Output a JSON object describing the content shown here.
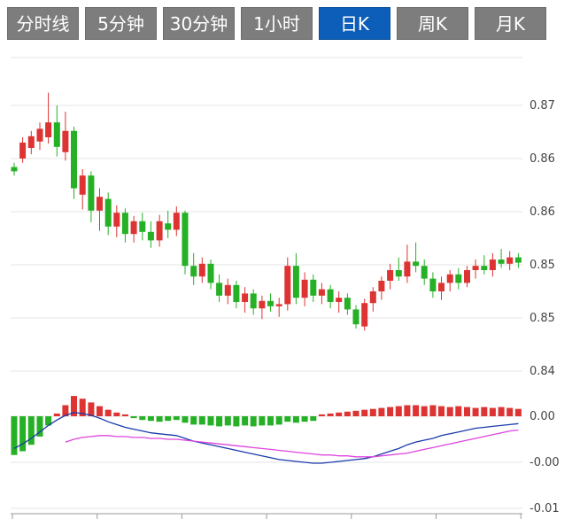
{
  "tabs": {
    "items": [
      {
        "label": "分时线",
        "active": false
      },
      {
        "label": "5分钟",
        "active": false
      },
      {
        "label": "30分钟",
        "active": false
      },
      {
        "label": "1小时",
        "active": false
      },
      {
        "label": "日K",
        "active": true
      },
      {
        "label": "周K",
        "active": false
      },
      {
        "label": "月K",
        "active": false
      }
    ],
    "active_index": 4
  },
  "colors": {
    "up": "#dd3333",
    "down": "#25b025",
    "dif_line": "#1a3aaa",
    "dea_line": "#dd44dd",
    "grid": "#e4e4e4",
    "axis": "#999999",
    "label": "#444444",
    "tab_bg": "#7d7d7d",
    "tab_active_bg": "#0d5eb8",
    "tab_text": "#ffffff"
  },
  "chart_data": {
    "type": "candlestick",
    "title": "",
    "legend": [],
    "price": {
      "ylim": [
        0.844,
        0.8745
      ],
      "grid_values": [
        0.8745,
        0.87,
        0.865,
        0.86,
        0.855,
        0.85,
        0.845
      ],
      "axis_ticks": [
        {
          "value": 0.87,
          "label": "0.87"
        },
        {
          "value": 0.865,
          "label": "0.86"
        },
        {
          "value": 0.86,
          "label": "0.86"
        },
        {
          "value": 0.855,
          "label": "0.85"
        },
        {
          "value": 0.85,
          "label": "0.85"
        },
        {
          "value": 0.845,
          "label": "0.84"
        }
      ],
      "candles": [
        [
          0.8642,
          0.8646,
          0.8634,
          0.8638
        ],
        [
          0.865,
          0.867,
          0.8646,
          0.8665
        ],
        [
          0.866,
          0.8676,
          0.8654,
          0.8671
        ],
        [
          0.8666,
          0.8684,
          0.8658,
          0.8678
        ],
        [
          0.867,
          0.8712,
          0.8664,
          0.8684
        ],
        [
          0.8684,
          0.87,
          0.8652,
          0.8661
        ],
        [
          0.8656,
          0.8694,
          0.8648,
          0.8676
        ],
        [
          0.8676,
          0.868,
          0.8612,
          0.8622
        ],
        [
          0.8616,
          0.864,
          0.8602,
          0.8634
        ],
        [
          0.8634,
          0.8638,
          0.859,
          0.8601
        ],
        [
          0.8601,
          0.8622,
          0.8582,
          0.8614
        ],
        [
          0.8612,
          0.8618,
          0.8578,
          0.8586
        ],
        [
          0.8586,
          0.8606,
          0.8576,
          0.8599
        ],
        [
          0.8599,
          0.8603,
          0.8571,
          0.8579
        ],
        [
          0.8579,
          0.8596,
          0.8571,
          0.8591
        ],
        [
          0.8591,
          0.8599,
          0.8573,
          0.8581
        ],
        [
          0.8581,
          0.8591,
          0.8566,
          0.8573
        ],
        [
          0.8573,
          0.8597,
          0.8567,
          0.8591
        ],
        [
          0.8589,
          0.8601,
          0.8575,
          0.8583
        ],
        [
          0.8583,
          0.8605,
          0.8577,
          0.8599
        ],
        [
          0.8599,
          0.8601,
          0.8541,
          0.8549
        ],
        [
          0.8549,
          0.8561,
          0.8531,
          0.8539
        ],
        [
          0.8539,
          0.8557,
          0.8533,
          0.8551
        ],
        [
          0.8551,
          0.8555,
          0.8527,
          0.8533
        ],
        [
          0.8533,
          0.8541,
          0.8515,
          0.8521
        ],
        [
          0.8521,
          0.8537,
          0.8513,
          0.8531
        ],
        [
          0.8531,
          0.8535,
          0.8509,
          0.8515
        ],
        [
          0.8515,
          0.8529,
          0.8505,
          0.8523
        ],
        [
          0.8523,
          0.8527,
          0.8503,
          0.8509
        ],
        [
          0.8509,
          0.8521,
          0.8499,
          0.8516
        ],
        [
          0.8516,
          0.8523,
          0.8506,
          0.8511
        ],
        [
          0.8511,
          0.8519,
          0.8501,
          0.8513
        ],
        [
          0.8513,
          0.8557,
          0.8507,
          0.8549
        ],
        [
          0.8549,
          0.8561,
          0.8513,
          0.8519
        ],
        [
          0.8519,
          0.8543,
          0.8511,
          0.8536
        ],
        [
          0.8536,
          0.8541,
          0.8515,
          0.8521
        ],
        [
          0.8521,
          0.8533,
          0.8513,
          0.8527
        ],
        [
          0.8527,
          0.8531,
          0.8509,
          0.8515
        ],
        [
          0.8515,
          0.8525,
          0.8505,
          0.8519
        ],
        [
          0.8519,
          0.8523,
          0.8503,
          0.8508
        ],
        [
          0.8508,
          0.8512,
          0.849,
          0.8494
        ],
        [
          0.8492,
          0.8518,
          0.8488,
          0.8514
        ],
        [
          0.8514,
          0.8529,
          0.8506,
          0.8525
        ],
        [
          0.8525,
          0.8539,
          0.8517,
          0.8535
        ],
        [
          0.8535,
          0.8551,
          0.8527,
          0.8545
        ],
        [
          0.8545,
          0.8557,
          0.8535,
          0.8539
        ],
        [
          0.8539,
          0.8569,
          0.8533,
          0.8553
        ],
        [
          0.8553,
          0.8571,
          0.8543,
          0.8549
        ],
        [
          0.8549,
          0.8555,
          0.8531,
          0.8537
        ],
        [
          0.8537,
          0.8543,
          0.8519,
          0.8525
        ],
        [
          0.8525,
          0.8539,
          0.8517,
          0.8533
        ],
        [
          0.8533,
          0.8545,
          0.8525,
          0.8541
        ],
        [
          0.8541,
          0.8547,
          0.8527,
          0.8533
        ],
        [
          0.8533,
          0.8549,
          0.8529,
          0.8545
        ],
        [
          0.8545,
          0.8555,
          0.8537,
          0.8549
        ],
        [
          0.8549,
          0.8559,
          0.8541,
          0.8545
        ],
        [
          0.8545,
          0.8561,
          0.8539,
          0.8555
        ],
        [
          0.8555,
          0.8565,
          0.8547,
          0.8551
        ],
        [
          0.8551,
          0.8563,
          0.8545,
          0.8557
        ],
        [
          0.8557,
          0.8561,
          0.8547,
          0.8552
        ]
      ]
    },
    "macd": {
      "ylim": [
        -0.0104,
        0.0026
      ],
      "grid_values": [
        0.0,
        -0.005,
        -0.01
      ],
      "axis_ticks": [
        {
          "value": 0.0,
          "label": "0.00"
        },
        {
          "value": -0.005,
          "label": "-0.00"
        },
        {
          "value": -0.01,
          "label": "-0.01"
        }
      ],
      "histogram": [
        -0.0042,
        -0.0038,
        -0.0031,
        -0.0022,
        -0.001,
        0.0003,
        0.0012,
        0.0022,
        0.0019,
        0.0015,
        0.0011,
        0.0007,
        0.0004,
        0.0002,
        -0.0002,
        -0.0004,
        -0.0005,
        -0.0006,
        -0.0005,
        -0.0004,
        -0.0007,
        -0.0009,
        -0.0009,
        -0.001,
        -0.0011,
        -0.001,
        -0.0011,
        -0.001,
        -0.0011,
        -0.001,
        -0.001,
        -0.0009,
        -0.0006,
        -0.0007,
        -0.0006,
        -0.0005,
        0.0002,
        0.0003,
        0.0004,
        0.0005,
        0.0006,
        0.0007,
        0.0008,
        0.0009,
        0.001,
        0.0011,
        0.0012,
        0.0012,
        0.0011,
        0.0012,
        0.0011,
        0.001,
        0.0011,
        0.001,
        0.0009,
        0.001,
        0.0009,
        0.001,
        0.0009,
        0.0008
      ],
      "dif": [
        -0.0035,
        -0.003,
        -0.0024,
        -0.0017,
        -0.001,
        -0.0004,
        0.0001,
        0.0004,
        0.0003,
        0.0001,
        -0.0002,
        -0.0006,
        -0.0009,
        -0.0012,
        -0.0014,
        -0.0016,
        -0.0018,
        -0.0019,
        -0.002,
        -0.0021,
        -0.0024,
        -0.0027,
        -0.0029,
        -0.0031,
        -0.0033,
        -0.0035,
        -0.0037,
        -0.0039,
        -0.0041,
        -0.0043,
        -0.0045,
        -0.0047,
        -0.0048,
        -0.0049,
        -0.005,
        -0.0051,
        -0.0051,
        -0.005,
        -0.0049,
        -0.0048,
        -0.0047,
        -0.0046,
        -0.0044,
        -0.0041,
        -0.0038,
        -0.0035,
        -0.0031,
        -0.0028,
        -0.0026,
        -0.0024,
        -0.0021,
        -0.0019,
        -0.0017,
        -0.0015,
        -0.0013,
        -0.0012,
        -0.0011,
        -0.001,
        -0.0009,
        -0.0008
      ],
      "dea": [
        null,
        null,
        null,
        null,
        null,
        null,
        -0.0028,
        -0.0025,
        -0.0023,
        -0.0022,
        -0.0021,
        -0.0021,
        -0.0022,
        -0.0022,
        -0.0023,
        -0.0023,
        -0.0024,
        -0.0024,
        -0.0025,
        -0.0025,
        -0.0026,
        -0.0027,
        -0.0028,
        -0.0029,
        -0.003,
        -0.0031,
        -0.0032,
        -0.0033,
        -0.0034,
        -0.0035,
        -0.0036,
        -0.0037,
        -0.0038,
        -0.0039,
        -0.004,
        -0.0041,
        -0.0042,
        -0.0042,
        -0.0043,
        -0.0043,
        -0.0044,
        -0.0044,
        -0.0044,
        -0.0043,
        -0.0042,
        -0.0041,
        -0.004,
        -0.0038,
        -0.0036,
        -0.0034,
        -0.0032,
        -0.003,
        -0.0028,
        -0.0026,
        -0.0024,
        -0.0022,
        -0.002,
        -0.0018,
        -0.0016,
        -0.0015
      ]
    }
  }
}
